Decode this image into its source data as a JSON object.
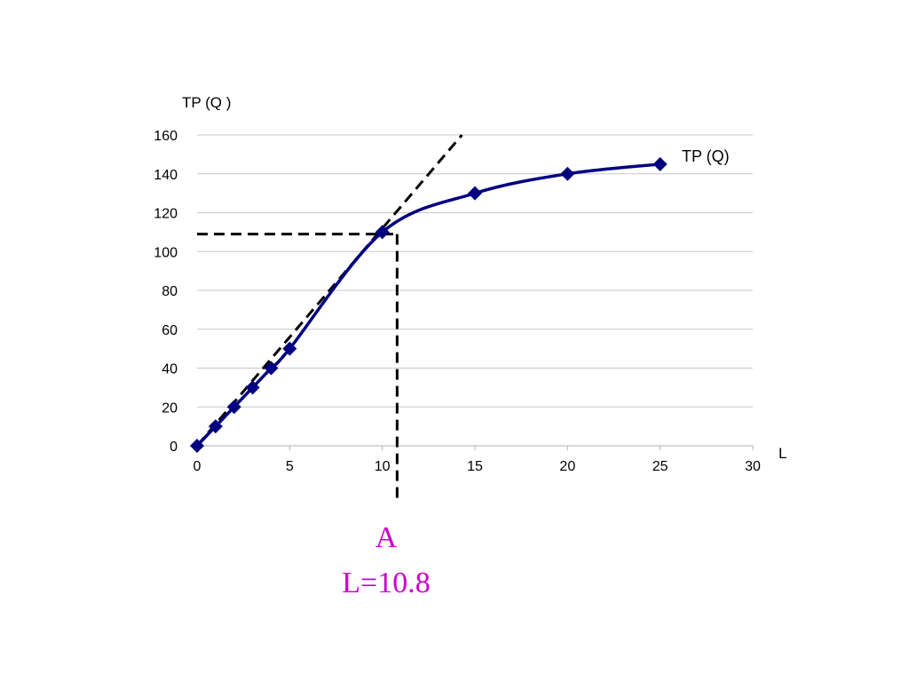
{
  "chart_data": {
    "type": "line",
    "title": "",
    "xlabel": "L",
    "ylabel": "TP (Q )",
    "xlim": [
      0,
      30
    ],
    "ylim": [
      0,
      160
    ],
    "x_ticks": [
      0,
      5,
      10,
      15,
      20,
      25,
      30
    ],
    "y_ticks": [
      0,
      20,
      40,
      60,
      80,
      100,
      120,
      140,
      160
    ],
    "grid": true,
    "series": [
      {
        "name": "TP (Q)",
        "color": "#000080",
        "x": [
          0,
          1,
          2,
          3,
          4,
          5,
          10,
          15,
          20,
          25
        ],
        "y": [
          0,
          10,
          20,
          30,
          40,
          50,
          110,
          130,
          140,
          145
        ]
      }
    ],
    "tangent_line": {
      "color": "#000000",
      "x": [
        0,
        14.3
      ],
      "y": [
        0,
        160
      ]
    },
    "reference_lines": {
      "horizontal_y": 109,
      "vertical_x": 10.8
    },
    "annotations": {
      "point_label": "A",
      "value_label": "L=10.8",
      "color": "#cc00cc"
    }
  }
}
